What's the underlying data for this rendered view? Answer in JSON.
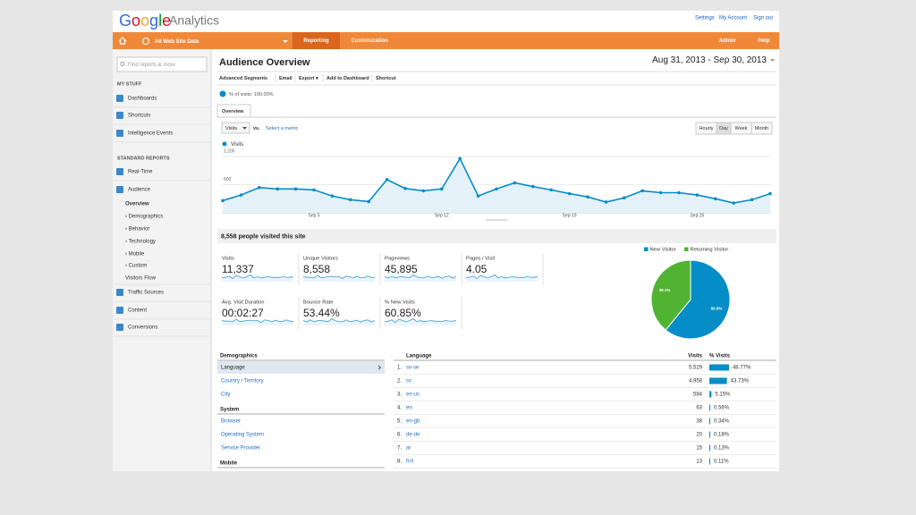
{
  "header": {
    "logo": "Google",
    "product": "Analytics",
    "links": [
      "Settings",
      "My Account",
      "Sign out"
    ]
  },
  "nav": {
    "account": "All Web Site Data",
    "tabs": [
      "Reporting",
      "Customization"
    ],
    "right": [
      "Admin",
      "Help"
    ]
  },
  "sidebar": {
    "search": "Find reports & more",
    "my_stuff_title": "MY STUFF",
    "my_stuff": [
      "Dashboards",
      "Shortcuts",
      "Intelligence Events"
    ],
    "standard_title": "STANDARD REPORTS",
    "standard": [
      "Real-Time",
      "Audience"
    ],
    "audience": [
      "Overview",
      "› Demographics",
      "› Behavior",
      "› Technology",
      "› Mobile",
      "› Custom",
      "Visitors Flow"
    ],
    "more": [
      "Traffic Sources",
      "Content",
      "Conversions"
    ]
  },
  "report": {
    "title": "Audience Overview",
    "date_range": "Aug 31, 2013 - Sep 30, 2013",
    "toolbar": [
      "Advanced Segments",
      "Email",
      "Export ▾",
      "Add to Dashboard",
      "Shortcut"
    ],
    "segment": "% of visits: 100.00%",
    "tab": "Overview",
    "metric": "Visits",
    "vs": "vs.",
    "select_metric": "Select a metric",
    "granularity": [
      "Hourly",
      "Day",
      "Week",
      "Month"
    ],
    "granularity_selected": 1
  },
  "chart_data": {
    "type": "line",
    "categories": [
      null,
      null,
      null,
      null,
      null,
      "Sep 5",
      null,
      null,
      null,
      null,
      null,
      null,
      "Sep 12",
      null,
      null,
      null,
      null,
      null,
      null,
      "Sep 19",
      null,
      null,
      null,
      null,
      null,
      null,
      "Sep 26",
      null,
      null,
      null,
      null
    ],
    "series": [
      {
        "name": "Visits",
        "color": "#058dc7",
        "values": [
          260,
          380,
          540,
          510,
          510,
          490,
          360,
          280,
          240,
          710,
          520,
          470,
          510,
          1160,
          360,
          510,
          640,
          560,
          490,
          410,
          340,
          230,
          320,
          470,
          430,
          430,
          380,
          300,
          210,
          280,
          410
        ]
      }
    ],
    "ylim": [
      0,
      1300
    ],
    "yticks": [
      600,
      {
        "value": 1200,
        "label": "1,200"
      }
    ],
    "grid": true
  },
  "summary": "8,558 people visited this site",
  "metrics": [
    {
      "label": "Visits",
      "value": "11,337"
    },
    {
      "label": "Unique Visitors",
      "value": "8,558"
    },
    {
      "label": "Pageviews",
      "value": "45,895"
    },
    {
      "label": "Pages / Visit",
      "value": "4.05"
    },
    {
      "label": "Avg. Visit Duration",
      "value": "00:02:27"
    },
    {
      "label": "Bounce Rate",
      "value": "53.44%"
    },
    {
      "label": "% New Visits",
      "value": "60.85%"
    }
  ],
  "pie": {
    "type": "pie",
    "categories": [
      "New Visitor",
      "Returning Visitor"
    ],
    "values": [
      60.9,
      39.1
    ],
    "value_labels": [
      "60.9%",
      "39.1%"
    ],
    "colors": [
      "#058dc7",
      "#50b432"
    ]
  },
  "demographics": [
    {
      "title": "Demographics",
      "items": [
        "Language",
        "Country / Territory",
        "City"
      ]
    },
    {
      "title": "System",
      "items": [
        "Browser",
        "Operating System",
        "Service Provider"
      ]
    },
    {
      "title": "Mobile",
      "items": []
    }
  ],
  "language_table": {
    "headers": [
      "Language",
      "Visits",
      "% Visits"
    ],
    "rows": [
      {
        "rank": "1.",
        "name": "sv-se",
        "visits": "5,529",
        "pct": 48.77,
        "pct_label": "48.77%"
      },
      {
        "rank": "2.",
        "name": "sv",
        "visits": "4,958",
        "pct": 43.73,
        "pct_label": "43.73%"
      },
      {
        "rank": "3.",
        "name": "en-us",
        "visits": "584",
        "pct": 5.15,
        "pct_label": "5.15%"
      },
      {
        "rank": "4.",
        "name": "en",
        "visits": "63",
        "pct": 0.56,
        "pct_label": "0.56%"
      },
      {
        "rank": "5.",
        "name": "en-gb",
        "visits": "38",
        "pct": 0.34,
        "pct_label": "0.34%"
      },
      {
        "rank": "6.",
        "name": "de-de",
        "visits": "20",
        "pct": 0.18,
        "pct_label": "0.18%"
      },
      {
        "rank": "7.",
        "name": "ar",
        "visits": "15",
        "pct": 0.13,
        "pct_label": "0.13%"
      },
      {
        "rank": "8.",
        "name": "fi-fi",
        "visits": "13",
        "pct": 0.11,
        "pct_label": "0.11%"
      }
    ]
  }
}
